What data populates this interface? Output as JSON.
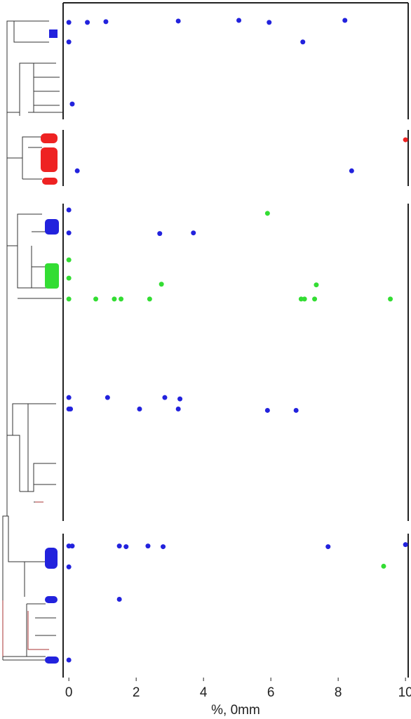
{
  "chart_data": {
    "type": "scatter",
    "x_label": "%, 0mm",
    "xlim": [
      -0.17,
      10.08
    ],
    "xticks": [
      0,
      2,
      4,
      6,
      8,
      10
    ],
    "ylim": [
      100,
      0
    ],
    "series": [
      {
        "name": "blue",
        "color": "#2222dd",
        "x": [
          0,
          0.55,
          1.1,
          3.25,
          5.05,
          5.95,
          8.2,
          0,
          6.95,
          0.1,
          0.25,
          8.4,
          0,
          2.7,
          3.7,
          0,
          0,
          1.15,
          2.85,
          3.3,
          0,
          0.05,
          2.1,
          3.25,
          5.9,
          6.75,
          0,
          0.1,
          1.5,
          1.7,
          2.35,
          2.8,
          7.7,
          10.0,
          0,
          1.5,
          0
        ],
        "y": [
          2.9,
          2.9,
          2.8,
          2.7,
          2.6,
          2.9,
          2.6,
          5.8,
          5.8,
          15.0,
          24.9,
          24.9,
          30.7,
          34.2,
          34.1,
          34.1,
          58.5,
          58.5,
          58.5,
          58.7,
          60.2,
          60.2,
          60.2,
          60.2,
          60.4,
          60.4,
          80.5,
          80.5,
          80.5,
          80.6,
          80.5,
          80.6,
          80.6,
          80.3,
          83.6,
          88.4,
          97.4
        ]
      },
      {
        "name": "red",
        "color": "#ee2222",
        "x": [
          10.0
        ],
        "y": [
          20.3
        ]
      },
      {
        "name": "green",
        "color": "#33dd33",
        "x": [
          5.9,
          0,
          0,
          2.75,
          7.35,
          0,
          0.8,
          1.35,
          1.55,
          2.4,
          6.9,
          7.0,
          7.3,
          9.55,
          9.35
        ],
        "y": [
          31.2,
          38.1,
          40.8,
          41.7,
          41.8,
          43.9,
          43.9,
          43.9,
          43.9,
          43.9,
          43.9,
          43.9,
          43.9,
          43.9,
          83.5
        ]
      }
    ]
  }
}
